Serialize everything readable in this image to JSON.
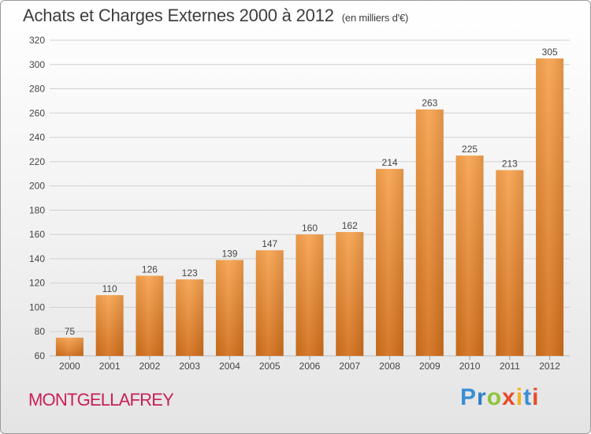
{
  "chart_data": {
    "type": "bar",
    "title": "Achats et Charges Externes 2000 à 2012",
    "subtitle": "(en milliers d'€)",
    "categories": [
      "2000",
      "2001",
      "2002",
      "2003",
      "2004",
      "2005",
      "2006",
      "2007",
      "2008",
      "2009",
      "2010",
      "2011",
      "2012"
    ],
    "values": [
      75,
      110,
      126,
      123,
      139,
      147,
      160,
      162,
      214,
      263,
      225,
      213,
      305
    ],
    "ylim": [
      60,
      320
    ],
    "yticks": [
      60,
      80,
      100,
      120,
      140,
      160,
      180,
      200,
      220,
      240,
      260,
      280,
      300,
      320
    ],
    "grid": true,
    "bar_color_top": "#f7a24e",
    "bar_color_bottom": "#d26f1b"
  },
  "footer": {
    "commune": "MONTGELLAFREY",
    "brand": [
      "P",
      "r",
      "o",
      "x",
      "i",
      "t",
      "i"
    ],
    "brand_colors": [
      "#3a8fd6",
      "#2f7fc8",
      "#8fc43a",
      "#e84b2a",
      "#f2b21c",
      "#3a8fd6",
      "#e84b2a"
    ]
  }
}
